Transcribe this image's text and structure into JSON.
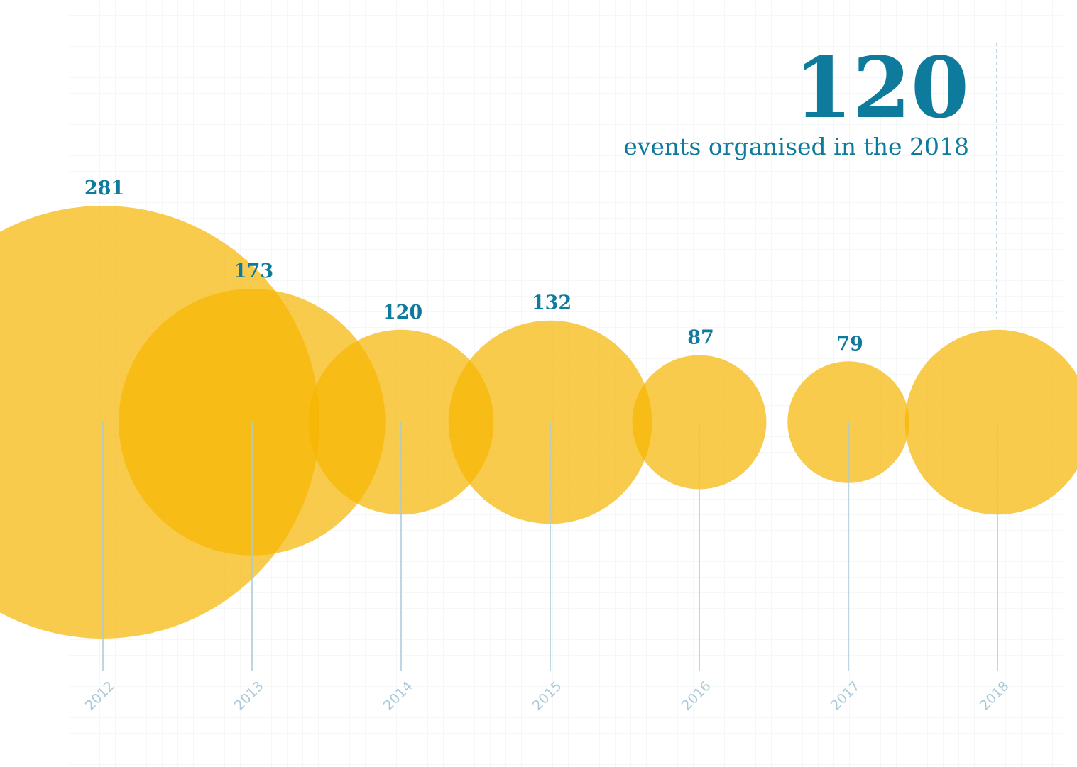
{
  "chart_data": {
    "type": "bubble",
    "headline_subtitle": "events organised in the 2018",
    "highlight": "2018",
    "categories": [
      "2012",
      "2013",
      "2014",
      "2015",
      "2016",
      "2017",
      "2018"
    ],
    "values": [
      281,
      173,
      120,
      132,
      87,
      79,
      120
    ],
    "color": "#f7b500",
    "label_color": "#0e7a9c"
  }
}
